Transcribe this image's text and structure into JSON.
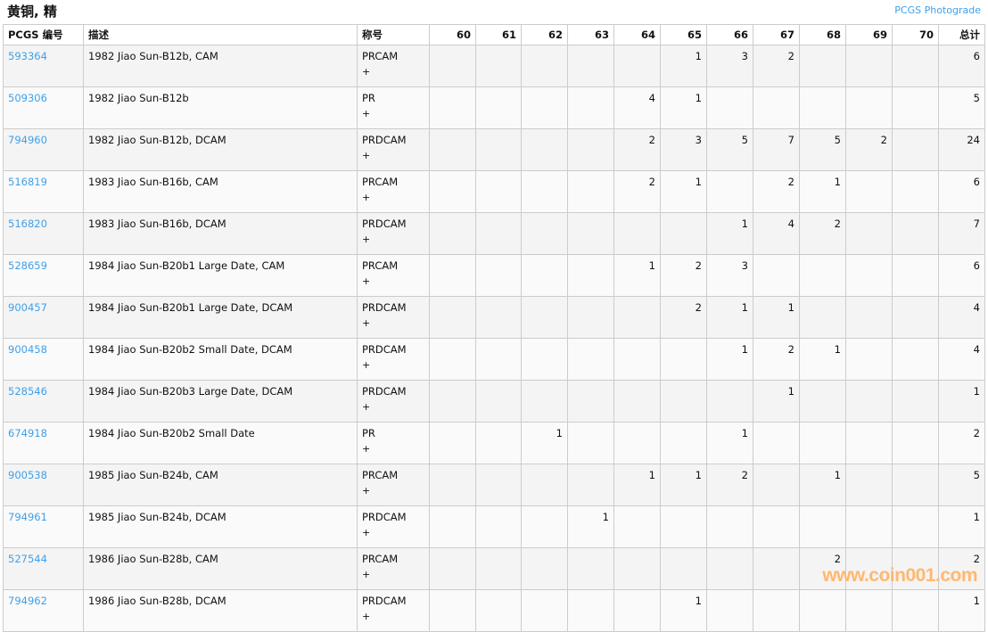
{
  "title": "黄铜, 精",
  "photograde_link": "PCGS Photograde",
  "headers": {
    "code": "PCGS 编号",
    "desc": "描述",
    "designation": "称号",
    "grades": [
      "60",
      "61",
      "62",
      "63",
      "64",
      "65",
      "66",
      "67",
      "68",
      "69",
      "70"
    ],
    "total": "总计"
  },
  "plus_label": "+",
  "rows": [
    {
      "code": "593364",
      "desc": "1982 Jiao Sun-B12b, CAM",
      "designation": "PRCAM",
      "counts": [
        "",
        "",
        "",
        "",
        "",
        "1",
        "3",
        "2",
        "",
        "",
        ""
      ],
      "total": "6"
    },
    {
      "code": "509306",
      "desc": "1982 Jiao Sun-B12b",
      "designation": "PR",
      "counts": [
        "",
        "",
        "",
        "",
        "4",
        "1",
        "",
        "",
        "",
        "",
        ""
      ],
      "total": "5"
    },
    {
      "code": "794960",
      "desc": "1982 Jiao Sun-B12b, DCAM",
      "designation": "PRDCAM",
      "counts": [
        "",
        "",
        "",
        "",
        "2",
        "3",
        "5",
        "7",
        "5",
        "2",
        ""
      ],
      "total": "24"
    },
    {
      "code": "516819",
      "desc": "1983 Jiao Sun-B16b, CAM",
      "designation": "PRCAM",
      "counts": [
        "",
        "",
        "",
        "",
        "2",
        "1",
        "",
        "2",
        "1",
        "",
        ""
      ],
      "total": "6"
    },
    {
      "code": "516820",
      "desc": "1983 Jiao Sun-B16b, DCAM",
      "designation": "PRDCAM",
      "counts": [
        "",
        "",
        "",
        "",
        "",
        "",
        "1",
        "4",
        "2",
        "",
        ""
      ],
      "total": "7"
    },
    {
      "code": "528659",
      "desc": "1984 Jiao Sun-B20b1 Large Date, CAM",
      "designation": "PRCAM",
      "counts": [
        "",
        "",
        "",
        "",
        "1",
        "2",
        "3",
        "",
        "",
        "",
        ""
      ],
      "total": "6"
    },
    {
      "code": "900457",
      "desc": "1984 Jiao Sun-B20b1 Large Date, DCAM",
      "designation": "PRDCAM",
      "counts": [
        "",
        "",
        "",
        "",
        "",
        "2",
        "1",
        "1",
        "",
        "",
        ""
      ],
      "total": "4"
    },
    {
      "code": "900458",
      "desc": "1984 Jiao Sun-B20b2 Small Date, DCAM",
      "designation": "PRDCAM",
      "counts": [
        "",
        "",
        "",
        "",
        "",
        "",
        "1",
        "2",
        "1",
        "",
        ""
      ],
      "total": "4"
    },
    {
      "code": "528546",
      "desc": "1984 Jiao Sun-B20b3 Large Date, DCAM",
      "designation": "PRDCAM",
      "counts": [
        "",
        "",
        "",
        "",
        "",
        "",
        "",
        "1",
        "",
        "",
        ""
      ],
      "total": "1"
    },
    {
      "code": "674918",
      "desc": "1984 Jiao Sun-B20b2 Small Date",
      "designation": "PR",
      "counts": [
        "",
        "",
        "1",
        "",
        "",
        "",
        "1",
        "",
        "",
        "",
        ""
      ],
      "total": "2"
    },
    {
      "code": "900538",
      "desc": "1985 Jiao Sun-B24b, CAM",
      "designation": "PRCAM",
      "counts": [
        "",
        "",
        "",
        "",
        "1",
        "1",
        "2",
        "",
        "1",
        "",
        ""
      ],
      "total": "5"
    },
    {
      "code": "794961",
      "desc": "1985 Jiao Sun-B24b, DCAM",
      "designation": "PRDCAM",
      "counts": [
        "",
        "",
        "",
        "1",
        "",
        "",
        "",
        "",
        "",
        "",
        ""
      ],
      "total": "1"
    },
    {
      "code": "527544",
      "desc": "1986 Jiao Sun-B28b, CAM",
      "designation": "PRCAM",
      "counts": [
        "",
        "",
        "",
        "",
        "",
        "",
        "",
        "",
        "2",
        "",
        ""
      ],
      "total": "2"
    },
    {
      "code": "794962",
      "desc": "1986 Jiao Sun-B28b, DCAM",
      "designation": "PRDCAM",
      "counts": [
        "",
        "",
        "",
        "",
        "",
        "1",
        "",
        "",
        "",
        "",
        ""
      ],
      "total": "1"
    }
  ],
  "watermark": "www.coin001.com",
  "colors": {
    "link": "#3fa0e8",
    "watermark": "#ffb870",
    "row_odd": "#f4f4f4",
    "row_even": "#fafafa"
  }
}
